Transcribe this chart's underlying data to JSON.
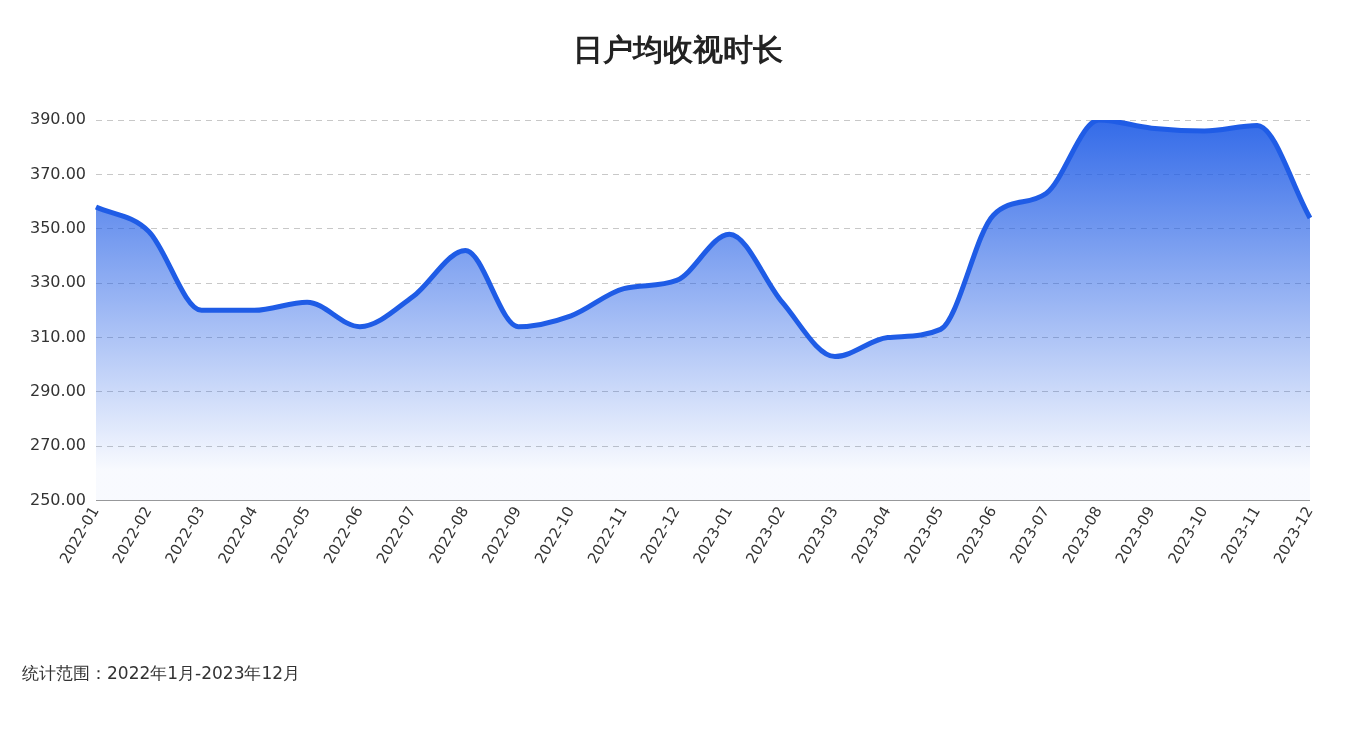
{
  "chart_data": {
    "type": "area",
    "title": "日户均收视时长",
    "categories": [
      "2022-01",
      "2022-02",
      "2022-03",
      "2022-04",
      "2022-05",
      "2022-06",
      "2022-07",
      "2022-08",
      "2022-09",
      "2022-10",
      "2022-11",
      "2022-12",
      "2023-01",
      "2023-02",
      "2023-03",
      "2023-04",
      "2023-05",
      "2023-06",
      "2023-07",
      "2023-08",
      "2023-09",
      "2023-10",
      "2023-11",
      "2023-12"
    ],
    "series": [
      {
        "color": "#1f5ce6",
        "values": [
          358,
          349,
          320,
          320,
          323,
          314,
          325,
          342,
          314,
          318,
          328,
          331,
          348,
          323,
          303,
          310,
          313,
          355,
          363,
          390,
          387,
          386,
          388,
          354
        ]
      }
    ],
    "ylim": [
      250,
      390
    ],
    "yticks": [
      {
        "value": 250,
        "label": "250.00"
      },
      {
        "value": 270,
        "label": "270.00"
      },
      {
        "value": 290,
        "label": "290.00"
      },
      {
        "value": 310,
        "label": "310.00"
      },
      {
        "value": 330,
        "label": "330.00"
      },
      {
        "value": 350,
        "label": "350.00"
      },
      {
        "value": 370,
        "label": "370.00"
      },
      {
        "value": 390,
        "label": "390.00"
      }
    ],
    "grid": "y",
    "line_style": "solid",
    "marker": "none",
    "annotations": [
      "统计范围：2022年1月-2023年12月"
    ]
  }
}
